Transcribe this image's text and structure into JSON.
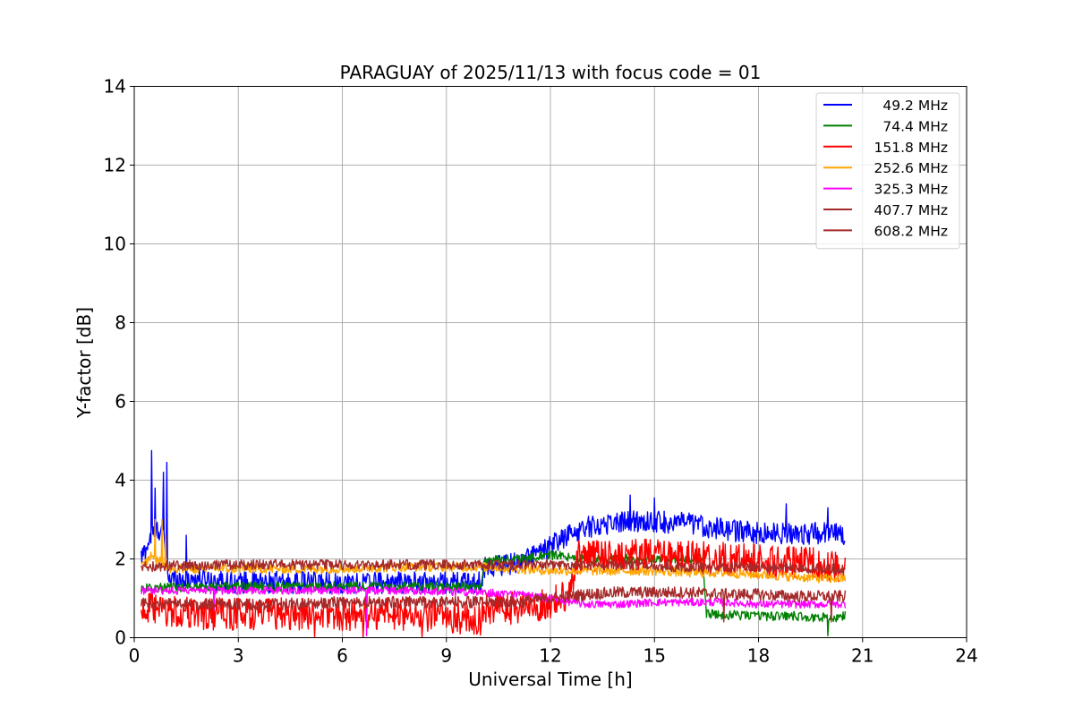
{
  "chart_data": {
    "type": "line",
    "title": "PARAGUAY of 2025/11/13 with focus code = 01",
    "xlabel": "Universal Time [h]",
    "ylabel": "Y-factor [dB]",
    "xlim": [
      0,
      24
    ],
    "ylim": [
      0,
      14
    ],
    "xticks": [
      "0",
      "3",
      "6",
      "9",
      "12",
      "15",
      "18",
      "21",
      "24"
    ],
    "yticks": [
      "0",
      "2",
      "4",
      "6",
      "8",
      "10",
      "12",
      "14"
    ],
    "grid": true,
    "legend_position": "top-right",
    "series": [
      {
        "name": "49.2 MHz",
        "color": "#0000ff",
        "x": [
          0.2,
          0.5,
          0.8,
          1.0,
          2,
          3,
          4,
          5,
          6,
          7,
          8,
          9,
          10.0,
          10.1,
          11,
          11.8,
          12.5,
          13,
          14,
          15,
          16,
          17,
          18,
          19,
          20,
          20.5
        ],
        "y": [
          2.0,
          2.6,
          2.8,
          1.5,
          1.5,
          1.4,
          1.4,
          1.4,
          1.4,
          1.4,
          1.4,
          1.4,
          1.4,
          1.8,
          1.9,
          2.2,
          2.6,
          2.8,
          2.95,
          2.95,
          2.9,
          2.75,
          2.65,
          2.65,
          2.65,
          2.6
        ],
        "noise": 0.28,
        "spikes": [
          [
            0.5,
            4.75
          ],
          [
            0.6,
            3.8
          ],
          [
            0.85,
            4.2
          ],
          [
            0.95,
            4.45
          ],
          [
            1.5,
            2.6
          ],
          [
            14.3,
            3.62
          ],
          [
            15.0,
            3.55
          ],
          [
            18.8,
            3.4
          ],
          [
            20.0,
            3.3
          ]
        ]
      },
      {
        "name": "74.4 MHz",
        "color": "#008000",
        "x": [
          0.2,
          2,
          4,
          6,
          8,
          10.0,
          10.1,
          11,
          12,
          12.5,
          13,
          16.4,
          16.5,
          18,
          19,
          20,
          20.5
        ],
        "y": [
          1.25,
          1.3,
          1.3,
          1.3,
          1.3,
          1.3,
          1.95,
          2.0,
          2.1,
          2.05,
          2.0,
          2.0,
          0.6,
          0.55,
          0.55,
          0.5,
          0.55
        ],
        "noise": 0.12,
        "spikes": [
          [
            20.0,
            0.05
          ]
        ]
      },
      {
        "name": "151.8 MHz",
        "color": "#ff0000",
        "x": [
          0.2,
          1,
          2,
          3,
          4,
          5,
          6,
          7,
          8,
          9,
          10.0,
          10.1,
          11,
          12,
          12.5,
          12.8,
          14,
          15,
          16,
          17,
          18,
          19,
          20,
          20.5
        ],
        "y": [
          0.75,
          0.65,
          0.6,
          0.6,
          0.6,
          0.6,
          0.6,
          0.6,
          0.6,
          0.55,
          0.45,
          0.7,
          0.75,
          0.85,
          1.1,
          2.05,
          2.1,
          2.1,
          2.05,
          2.0,
          1.95,
          1.9,
          1.85,
          1.8
        ],
        "noise": 0.42,
        "spikes": [
          [
            5.2,
            0.02
          ],
          [
            6.6,
            0.02
          ],
          [
            8.3,
            0.02
          ]
        ]
      },
      {
        "name": "252.6 MHz",
        "color": "#ffa500",
        "x": [
          0.2,
          0.5,
          1,
          2,
          4,
          6,
          8,
          10,
          12,
          14,
          15,
          16,
          17,
          18,
          19,
          20,
          20.5
        ],
        "y": [
          1.8,
          2.1,
          1.75,
          1.75,
          1.75,
          1.75,
          1.8,
          1.8,
          1.7,
          1.7,
          1.7,
          1.65,
          1.65,
          1.6,
          1.55,
          1.5,
          1.5
        ],
        "noise": 0.12,
        "spikes": [
          [
            0.6,
            3.0
          ],
          [
            0.8,
            3.0
          ],
          [
            0.9,
            2.6
          ]
        ]
      },
      {
        "name": "325.3 MHz",
        "color": "#ff00ff",
        "x": [
          0.2,
          2,
          4,
          6,
          8,
          10,
          11,
          12,
          13,
          14,
          15,
          16,
          17,
          18,
          19,
          20,
          20.5
        ],
        "y": [
          1.2,
          1.2,
          1.2,
          1.2,
          1.2,
          1.15,
          1.1,
          1.0,
          0.85,
          0.85,
          0.9,
          0.9,
          0.9,
          0.85,
          0.85,
          0.85,
          0.85
        ],
        "noise": 0.1,
        "spikes": [
          [
            6.7,
            0.05
          ],
          [
            2.3,
            0.7
          ]
        ]
      },
      {
        "name": "407.7 MHz",
        "color": "#a52a2a",
        "x": [
          0.2,
          2,
          4,
          6,
          8,
          10,
          11,
          12,
          13,
          14,
          15,
          16,
          17,
          18,
          19,
          20,
          20.5
        ],
        "y": [
          0.85,
          0.85,
          0.85,
          0.9,
          0.9,
          0.9,
          0.9,
          1.0,
          1.1,
          1.15,
          1.15,
          1.15,
          1.1,
          1.1,
          1.05,
          1.05,
          1.05
        ],
        "noise": 0.15,
        "spikes": [
          [
            17.0,
            0.4
          ],
          [
            20.1,
            0.4
          ]
        ]
      },
      {
        "name": "608.2 MHz",
        "color": "#a52a2a",
        "x": [
          0.2,
          2,
          4,
          6,
          8,
          10,
          12,
          14,
          16,
          18,
          20,
          20.5
        ],
        "y": [
          1.8,
          1.85,
          1.85,
          1.85,
          1.85,
          1.85,
          1.85,
          1.85,
          1.8,
          1.8,
          1.75,
          1.75
        ],
        "noise": 0.13,
        "spikes": []
      }
    ]
  }
}
